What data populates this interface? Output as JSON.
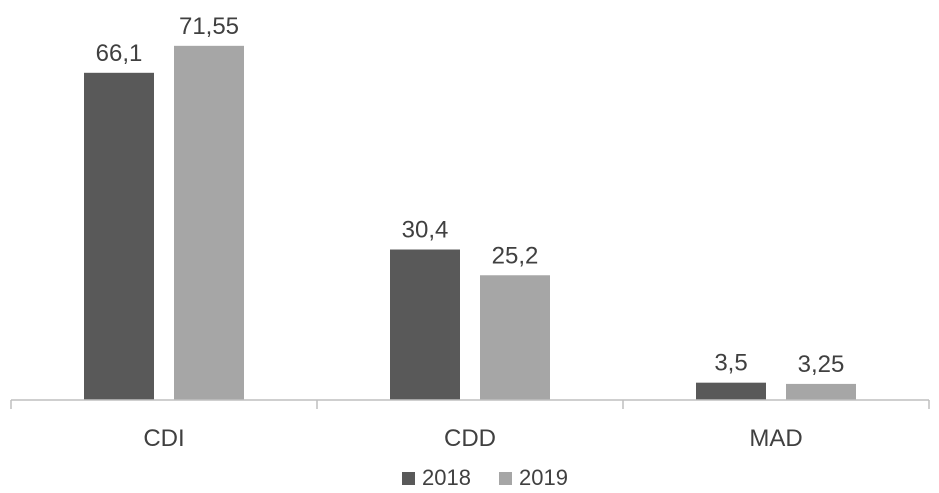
{
  "chart_data": {
    "type": "bar",
    "categories": [
      "CDI",
      "CDD",
      "MAD"
    ],
    "series": [
      {
        "name": "2018",
        "values": [
          66.1,
          30.4,
          3.5
        ],
        "labels": [
          "66,1",
          "30,4",
          "3,5"
        ],
        "color": "#595959"
      },
      {
        "name": "2019",
        "values": [
          71.55,
          25.2,
          3.25
        ],
        "labels": [
          "71,55",
          "25,2",
          "3,25"
        ],
        "color": "#a6a6a6"
      }
    ],
    "ylim": [
      0,
      80
    ],
    "grid": false,
    "legend_position": "bottom",
    "axis_color": "#bfbfbf"
  }
}
